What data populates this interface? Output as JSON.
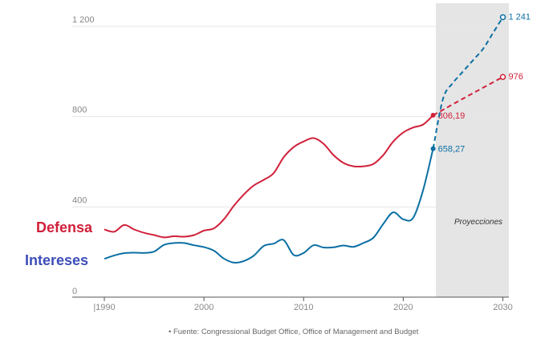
{
  "chart_data": {
    "type": "line",
    "title": "",
    "xlabel": "",
    "ylabel": "",
    "xlim": [
      1987,
      2031
    ],
    "ylim": [
      0,
      1200
    ],
    "x_ticks": [
      1990,
      2000,
      2010,
      2020,
      2030
    ],
    "x_tick_labels": [
      "|1990",
      "2000",
      "2010",
      "2020",
      "2030"
    ],
    "y_ticks": [
      0,
      400,
      800,
      1200
    ],
    "y_tick_labels": [
      "0",
      "400",
      "800",
      "1 200"
    ],
    "grid": true,
    "projection": {
      "from": 2023,
      "to": 2030,
      "label": "Proyecciones"
    },
    "series": [
      {
        "name": "Defensa",
        "color": "#d0203a",
        "points": [
          [
            1990,
            300
          ],
          [
            1991,
            290
          ],
          [
            1992,
            320
          ],
          [
            1993,
            300
          ],
          [
            1994,
            285
          ],
          [
            1995,
            275
          ],
          [
            1996,
            265
          ],
          [
            1997,
            270
          ],
          [
            1998,
            268
          ],
          [
            1999,
            275
          ],
          [
            2000,
            295
          ],
          [
            2001,
            305
          ],
          [
            2002,
            345
          ],
          [
            2003,
            405
          ],
          [
            2004,
            455
          ],
          [
            2005,
            495
          ],
          [
            2006,
            520
          ],
          [
            2007,
            550
          ],
          [
            2008,
            620
          ],
          [
            2009,
            665
          ],
          [
            2010,
            690
          ],
          [
            2011,
            705
          ],
          [
            2012,
            680
          ],
          [
            2013,
            630
          ],
          [
            2014,
            595
          ],
          [
            2015,
            580
          ],
          [
            2016,
            580
          ],
          [
            2017,
            590
          ],
          [
            2018,
            630
          ],
          [
            2019,
            690
          ],
          [
            2020,
            730
          ],
          [
            2021,
            752
          ],
          [
            2022,
            765
          ],
          [
            2023,
            806.19
          ]
        ],
        "projection": [
          [
            2023,
            806.19
          ],
          [
            2026,
            880
          ],
          [
            2030,
            976
          ]
        ],
        "last_actual_label": "806,19",
        "end_label": "976"
      },
      {
        "name": "Intereses",
        "color": "#0b6fa4",
        "points": [
          [
            1990,
            170
          ],
          [
            1991,
            185
          ],
          [
            1992,
            195
          ],
          [
            1993,
            197
          ],
          [
            1994,
            196
          ],
          [
            1995,
            202
          ],
          [
            1996,
            232
          ],
          [
            1997,
            240
          ],
          [
            1998,
            240
          ],
          [
            1999,
            230
          ],
          [
            2000,
            222
          ],
          [
            2001,
            206
          ],
          [
            2002,
            171
          ],
          [
            2003,
            153
          ],
          [
            2004,
            160
          ],
          [
            2005,
            184
          ],
          [
            2006,
            227
          ],
          [
            2007,
            237
          ],
          [
            2008,
            253
          ],
          [
            2009,
            187
          ],
          [
            2010,
            196
          ],
          [
            2011,
            230
          ],
          [
            2012,
            220
          ],
          [
            2013,
            221
          ],
          [
            2014,
            229
          ],
          [
            2015,
            223
          ],
          [
            2016,
            240
          ],
          [
            2017,
            263
          ],
          [
            2018,
            325
          ],
          [
            2019,
            376
          ],
          [
            2020,
            345
          ],
          [
            2021,
            352
          ],
          [
            2022,
            475
          ],
          [
            2023,
            658.27
          ]
        ],
        "projection": [
          [
            2023,
            658.27
          ],
          [
            2024,
            880
          ],
          [
            2025,
            950
          ],
          [
            2026,
            1000
          ],
          [
            2027,
            1050
          ],
          [
            2028,
            1100
          ],
          [
            2029,
            1170
          ],
          [
            2030,
            1241
          ]
        ],
        "last_actual_label": "658,27",
        "end_label": "1 241"
      }
    ],
    "source": "• Fuente: Congressional Budget Office, Office of Management and Budget"
  }
}
